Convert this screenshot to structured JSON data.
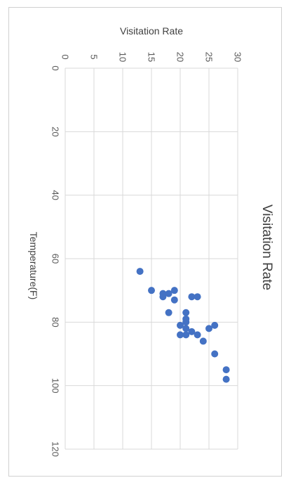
{
  "chart_data": {
    "type": "scatter",
    "title": "Visitation Rate",
    "xlabel": "Temperature(F)",
    "ylabel": "Visitation Rate",
    "xlim": [
      0,
      120
    ],
    "ylim": [
      0,
      30
    ],
    "x_ticks": [
      0,
      20,
      40,
      60,
      80,
      100,
      120
    ],
    "y_ticks": [
      0,
      5,
      10,
      15,
      20,
      25,
      30
    ],
    "grid": true,
    "orientation": "rotated 90 degrees clockwise",
    "marker_color": "#4472C4",
    "points": [
      {
        "x": 64,
        "y": 13
      },
      {
        "x": 70,
        "y": 15
      },
      {
        "x": 71,
        "y": 17
      },
      {
        "x": 72,
        "y": 17
      },
      {
        "x": 71,
        "y": 18
      },
      {
        "x": 70,
        "y": 19
      },
      {
        "x": 73,
        "y": 19
      },
      {
        "x": 77,
        "y": 18
      },
      {
        "x": 72,
        "y": 22
      },
      {
        "x": 72,
        "y": 23
      },
      {
        "x": 77,
        "y": 21
      },
      {
        "x": 79,
        "y": 21
      },
      {
        "x": 80,
        "y": 21
      },
      {
        "x": 81,
        "y": 20
      },
      {
        "x": 82,
        "y": 21
      },
      {
        "x": 83,
        "y": 22
      },
      {
        "x": 84,
        "y": 20
      },
      {
        "x": 84,
        "y": 21
      },
      {
        "x": 84,
        "y": 23
      },
      {
        "x": 86,
        "y": 24
      },
      {
        "x": 82,
        "y": 25
      },
      {
        "x": 81,
        "y": 26
      },
      {
        "x": 90,
        "y": 26
      },
      {
        "x": 95,
        "y": 28
      },
      {
        "x": 98,
        "y": 28
      }
    ]
  }
}
